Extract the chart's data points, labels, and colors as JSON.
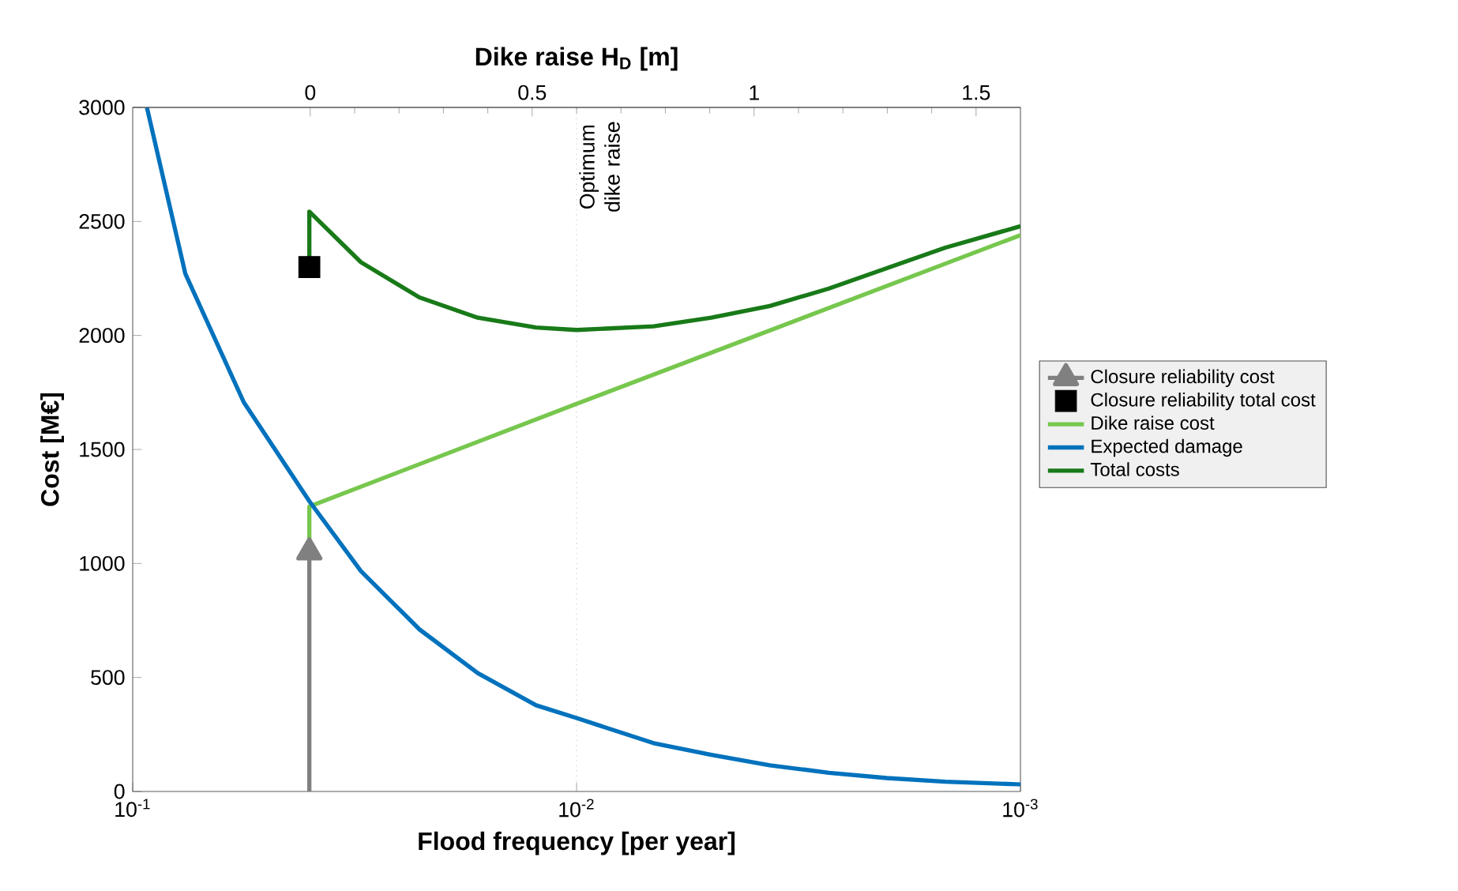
{
  "chart_data": {
    "type": "line",
    "xlabel": "Flood frequency [per year]",
    "ylabel": "Cost [M€]",
    "x2label": "Dike raise H$_{D}$ [m]",
    "log": "x",
    "xlim": [
      0.1,
      0.001
    ],
    "xticks": [
      {
        "value": 0.1,
        "label": "10$^{-1}$"
      },
      {
        "value": 0.01,
        "label": "10$^{-2}$"
      },
      {
        "value": 0.001,
        "label": "10$^{-3}$"
      }
    ],
    "x2lim": [
      -0.4,
      1.6
    ],
    "x2ticks": [
      0,
      0.5,
      1,
      1.5
    ],
    "ylim": [
      0,
      3000
    ],
    "yticks": [
      0,
      500,
      1000,
      1500,
      2000,
      2500,
      3000
    ],
    "legend": "right",
    "ref_lines": [
      {
        "axis": "x",
        "value": 0.01,
        "label": "Optimum dike raise",
        "color": "#b0b0b0",
        "line_style": "dotted"
      }
    ],
    "series": [
      {
        "name": "Closure reliability cost",
        "marker": "triangle",
        "color": "#808080",
        "x": [
          0.04,
          0.04
        ],
        "values": [
          0,
          1050
        ]
      },
      {
        "name": "Closure reliability total cost",
        "type": "scatter",
        "marker": "square",
        "color": "#000000",
        "x": [
          0.04
        ],
        "values": [
          2300
        ]
      },
      {
        "name": "Dike raise cost",
        "color": "#77c74e",
        "x": [
          0.04,
          0.04,
          0.01,
          0.001
        ],
        "values": [
          1070,
          1250,
          1700,
          2440
        ]
      },
      {
        "name": "Expected damage",
        "color": "#0072bd",
        "x": [
          0.0929,
          0.0761,
          0.0562,
          0.04,
          0.0306,
          0.0226,
          0.0167,
          0.01234,
          0.01,
          0.00671,
          0.00497,
          0.00367,
          0.0027,
          0.002,
          0.001476,
          0.001
        ],
        "values": [
          3000,
          2270,
          1707,
          1273,
          966,
          711,
          519,
          378,
          322,
          212,
          161,
          115,
          82,
          59,
          43,
          31
        ]
      },
      {
        "name": "Total costs",
        "color": "#187a18",
        "x": [
          0.04,
          0.04,
          0.0306,
          0.0226,
          0.0167,
          0.01234,
          0.01,
          0.00671,
          0.00497,
          0.00367,
          0.0027,
          0.002,
          0.001476,
          0.001
        ],
        "values": [
          2340,
          2543,
          2321,
          2167,
          2078,
          2035,
          2024,
          2040,
          2078,
          2129,
          2206,
          2295,
          2385,
          2479
        ]
      }
    ]
  }
}
